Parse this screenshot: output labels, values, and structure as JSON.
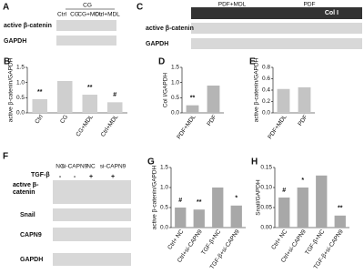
{
  "blots": {
    "A": {
      "label": "A",
      "group": "CG",
      "lanes": [
        "Ctrl",
        "CG",
        "CG+MDL",
        "Ctrl+MDL"
      ],
      "rows": [
        "active β-catenin",
        "GAPDH"
      ]
    },
    "C": {
      "label": "C",
      "lanes": [
        "PDF+MDL",
        "PDF"
      ],
      "rows": [
        "Col I",
        "active β-catenin",
        "GAPDH"
      ]
    },
    "F": {
      "label": "F",
      "lanes": [
        "NC",
        "si-CAPN9",
        "NC",
        "si-CAPN9"
      ],
      "treatment": "TGF-β",
      "signs": [
        "-",
        "-",
        "+",
        "+"
      ],
      "rows": [
        "active β-catenin",
        "Snail",
        "CAPN9",
        "GAPDH"
      ]
    }
  },
  "chart_data": [
    {
      "type": "bar",
      "label": "B",
      "y_label": "active β-catenin/GAPDH",
      "categories": [
        "Ctrl",
        "CG",
        "CG+MDL",
        "Ctrl+MDL"
      ],
      "values": [
        0.45,
        1.05,
        0.6,
        0.35
      ],
      "annotations": [
        "**",
        null,
        "**",
        "#"
      ],
      "color": "#cfcfcf",
      "ylim": [
        0,
        1.5
      ],
      "yticks": [
        {
          "value": 0,
          "label": "0.0"
        },
        0.5,
        {
          "value": 1,
          "label": "1.0"
        },
        1.5
      ]
    },
    {
      "type": "bar",
      "label": "D",
      "y_label": "Col I/GAPDH",
      "categories": [
        "PDF+MDL",
        "PDF"
      ],
      "values": [
        0.25,
        0.9
      ],
      "annotations": [
        "**",
        null
      ],
      "color": "#b5b5b5",
      "ylim": [
        0,
        1.5
      ],
      "yticks": [
        {
          "value": 0,
          "label": "0.0"
        },
        0.5,
        {
          "value": 1,
          "label": "1.0"
        },
        1.5
      ]
    },
    {
      "type": "bar",
      "label": "E",
      "y_label": "active β-catenin/GAPDH",
      "categories": [
        "PDF+MDL",
        "PDF"
      ],
      "values": [
        0.42,
        0.45
      ],
      "color": "#c4c4c4",
      "ylim": [
        0,
        0.8
      ],
      "yticks": [
        {
          "value": 0,
          "label": "0.0"
        },
        0.2,
        0.4,
        0.6,
        0.8
      ]
    },
    {
      "type": "bar",
      "label": "G",
      "y_label": "active β-catenin/GAPDH",
      "categories": [
        "Ctrl+ NC",
        "Ctrl+si-CAPN9",
        "TGF-β+NC",
        "TGF-β+si-CAPN9"
      ],
      "values": [
        0.5,
        0.45,
        1.0,
        0.55
      ],
      "annotations": [
        "#",
        "**",
        null,
        "*"
      ],
      "color": "#a8a8a8",
      "ylim": [
        0,
        1.5
      ],
      "yticks": [
        {
          "value": 0,
          "label": "0.0"
        },
        0.5,
        {
          "value": 1,
          "label": "1.0"
        },
        1.5
      ]
    },
    {
      "type": "bar",
      "label": "H",
      "y_label": "Snail/GAPDH",
      "categories": [
        "Ctrl+ NC",
        "Ctrl+si-CAPN9",
        "TGF-β+NC",
        "TGF-β+si-CAPN9"
      ],
      "values": [
        0.075,
        0.1,
        0.13,
        0.03
      ],
      "annotations": [
        "#",
        "*",
        null,
        "**"
      ],
      "color": "#a8a8a8",
      "ylim": [
        0,
        0.15
      ],
      "yticks": [
        {
          "value": 0,
          "label": "0.00"
        },
        0.05,
        {
          "value": 0.1,
          "label": "0.10"
        },
        0.15
      ]
    }
  ]
}
